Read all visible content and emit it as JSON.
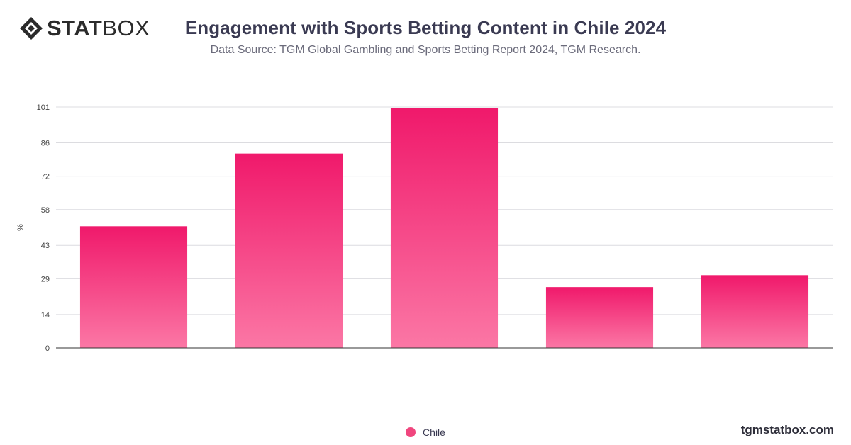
{
  "header": {
    "logo_bold": "STAT",
    "logo_light": "BOX",
    "title": "Engagement with Sports Betting Content in Chile 2024",
    "subtitle": "Data Source: TGM Global Gambling and Sports Betting Report 2024, TGM Research."
  },
  "footer": {
    "site": "tgmstatbox.com"
  },
  "colors": {
    "bar_top": "#f0196b",
    "bar_bottom": "#fb77a5",
    "legend": "#f0467e"
  },
  "chart_data": {
    "type": "bar",
    "categories": [
      "",
      "",
      "",
      "",
      ""
    ],
    "series": [
      {
        "name": "Chile",
        "values": [
          51,
          81.5,
          100.5,
          25.5,
          30.5
        ]
      }
    ],
    "ylabel": "%",
    "xlabel": "",
    "ylim": [
      0,
      101
    ],
    "yticks": [
      "0",
      "14",
      "29",
      "43",
      "58",
      "72",
      "86",
      "101"
    ],
    "grid": true,
    "legend": "bottom-center"
  }
}
